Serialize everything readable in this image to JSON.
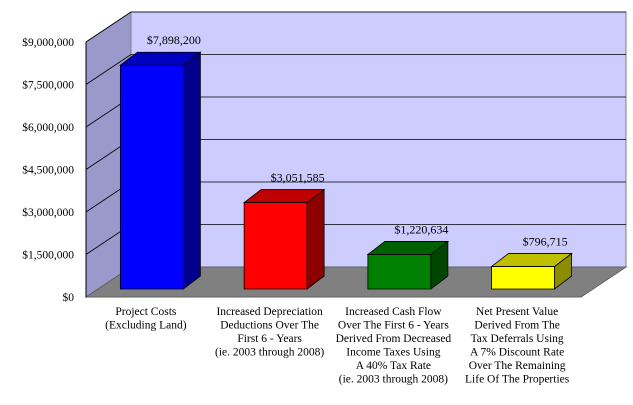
{
  "chart_data": {
    "type": "bar",
    "categories": [
      "Project Costs (Excluding Land)",
      "Increased Depreciation Deductions Over The First 6 - Years (ie. 2003 through 2008)",
      "Increased Cash Flow Over The First 6 - Years Derived From Decreased Income Taxes Using A 40% Tax Rate (ie. 2003 through 2008)",
      "Net Present Value Derived From The Tax Deferrals Using A 7% Discount Rate Over The Remaining Life Of The Properties"
    ],
    "category_lines": [
      [
        "Project Costs",
        "(Excluding Land)"
      ],
      [
        "Increased Depreciation",
        "Deductions Over The",
        "First 6 - Years",
        "(ie. 2003 through 2008)"
      ],
      [
        "Increased Cash Flow",
        "Over The First 6 - Years",
        "Derived From Decreased",
        "Income Taxes Using",
        "A 40% Tax Rate",
        "(ie. 2003 through 2008)"
      ],
      [
        "Net Present Value",
        "Derived From The",
        "Tax Deferrals Using",
        "A 7% Discount Rate",
        "Over The Remaining",
        "Life Of The Properties"
      ]
    ],
    "values": [
      7898200,
      3051585,
      1220634,
      796715
    ],
    "data_labels": [
      "$7,898,200",
      "$3,051,585",
      "$1,220,634",
      "$796,715"
    ],
    "colors": [
      "#0000ff",
      "#ff0000",
      "#008000",
      "#ffff00"
    ],
    "ylim": [
      0,
      9000000
    ],
    "yticks": [
      0,
      1500000,
      3000000,
      4500000,
      6000000,
      7500000,
      9000000
    ],
    "ytick_labels": [
      "$0",
      "$1,500,000",
      "$3,000,000",
      "$4,500,000",
      "$6,000,000",
      "$7,500,000",
      "$9,000,000"
    ],
    "grid": true,
    "three_d": true,
    "title": "",
    "xlabel": "",
    "ylabel": ""
  },
  "colors": {
    "back_wall": "#ccccff",
    "side_wall": "#9999cc",
    "floor": "#808080",
    "gridline": "#000000"
  }
}
